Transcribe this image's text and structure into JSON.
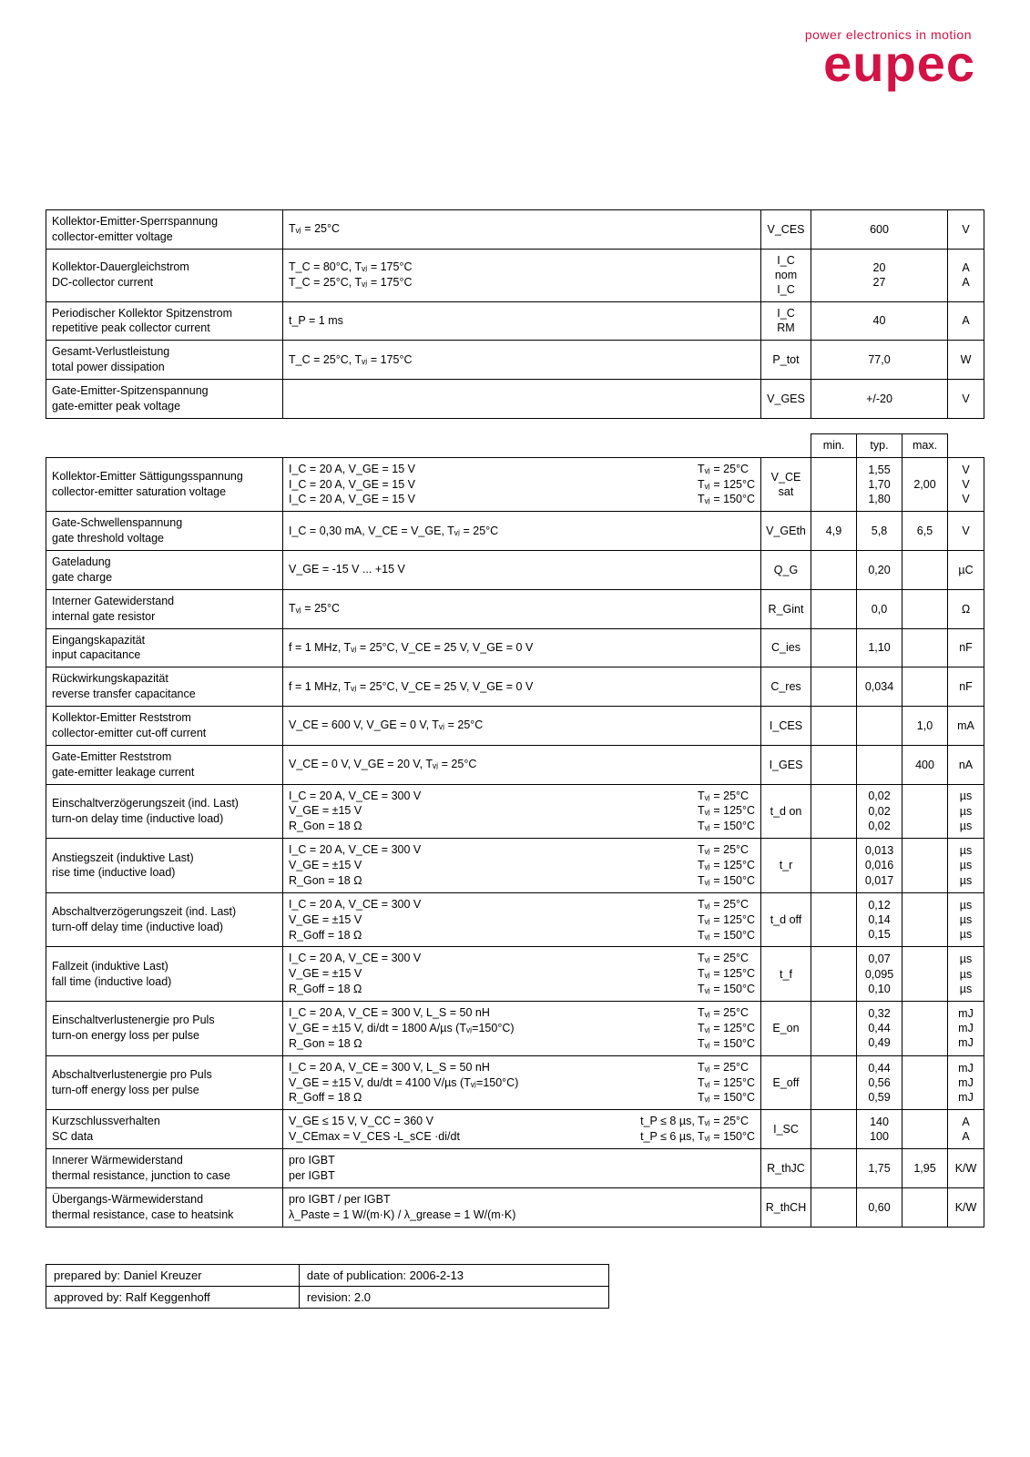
{
  "logo": {
    "tagline": "power electronics in motion",
    "brand": "eupec"
  },
  "headers": {
    "min": "min.",
    "typ": "typ.",
    "max": "max."
  },
  "table1_rows": [
    {
      "param": "Kollektor-Emitter-Sperrspannung\ncollector-emitter voltage",
      "cond_left": "Tᵥⱼ = 25°C",
      "cond_right": "",
      "sym": "V_CES",
      "val": "600",
      "unit": "V"
    },
    {
      "param": "Kollektor-Dauergleichstrom\nDC-collector current",
      "cond_left": "T_C = 80°C, Tᵥⱼ = 175°C\nT_C = 25°C, Tᵥⱼ = 175°C",
      "cond_right": "",
      "sym": "I_C nom\nI_C",
      "val": "20\n27",
      "unit": "A\nA"
    },
    {
      "param": "Periodischer Kollektor Spitzenstrom\nrepetitive peak collector current",
      "cond_left": "t_P = 1 ms",
      "cond_right": "",
      "sym": "I_C RM",
      "val": "40",
      "unit": "A"
    },
    {
      "param": "Gesamt-Verlustleistung\ntotal power dissipation",
      "cond_left": "T_C = 25°C, Tᵥⱼ = 175°C",
      "cond_right": "",
      "sym": "P_tot",
      "val": "77,0",
      "unit": "W"
    },
    {
      "param": "Gate-Emitter-Spitzenspannung\ngate-emitter peak voltage",
      "cond_left": "",
      "cond_right": "",
      "sym": "V_GES",
      "val": "+/-20",
      "unit": "V"
    }
  ],
  "table2_rows": [
    {
      "param": "Kollektor-Emitter Sättigungsspannung\ncollector-emitter saturation voltage",
      "cond_left": "I_C = 20 A, V_GE = 15 V\nI_C = 20 A, V_GE = 15 V\nI_C = 20 A, V_GE = 15 V",
      "cond_right": "Tᵥⱼ = 25°C\nTᵥⱼ = 125°C\nTᵥⱼ = 150°C",
      "sym": "V_CE sat",
      "min": "",
      "typ": "1,55\n1,70\n1,80",
      "max": "2,00",
      "unit": "V\nV\nV"
    },
    {
      "param": "Gate-Schwellenspannung\ngate threshold voltage",
      "cond_left": "I_C = 0,30 mA, V_CE = V_GE, Tᵥⱼ = 25°C",
      "cond_right": "",
      "sym": "V_GEth",
      "min": "4,9",
      "typ": "5,8",
      "max": "6,5",
      "unit": "V"
    },
    {
      "param": "Gateladung\ngate charge",
      "cond_left": "V_GE = -15 V ... +15 V",
      "cond_right": "",
      "sym": "Q_G",
      "min": "",
      "typ": "0,20",
      "max": "",
      "unit": "µC"
    },
    {
      "param": "Interner Gatewiderstand\ninternal gate resistor",
      "cond_left": "Tᵥⱼ = 25°C",
      "cond_right": "",
      "sym": "R_Gint",
      "min": "",
      "typ": "0,0",
      "max": "",
      "unit": "Ω"
    },
    {
      "param": "Eingangskapazität\ninput capacitance",
      "cond_left": "f = 1 MHz, Tᵥⱼ = 25°C, V_CE = 25 V, V_GE = 0 V",
      "cond_right": "",
      "sym": "C_ies",
      "min": "",
      "typ": "1,10",
      "max": "",
      "unit": "nF"
    },
    {
      "param": "Rückwirkungskapazität\nreverse transfer capacitance",
      "cond_left": "f = 1 MHz, Tᵥⱼ = 25°C, V_CE = 25 V, V_GE = 0 V",
      "cond_right": "",
      "sym": "C_res",
      "min": "",
      "typ": "0,034",
      "max": "",
      "unit": "nF"
    },
    {
      "param": "Kollektor-Emitter Reststrom\ncollector-emitter cut-off current",
      "cond_left": "V_CE = 600 V, V_GE = 0 V, Tᵥⱼ = 25°C",
      "cond_right": "",
      "sym": "I_CES",
      "min": "",
      "typ": "",
      "max": "1,0",
      "unit": "mA"
    },
    {
      "param": "Gate-Emitter Reststrom\ngate-emitter leakage current",
      "cond_left": "V_CE = 0 V, V_GE = 20 V, Tᵥⱼ = 25°C",
      "cond_right": "",
      "sym": "I_GES",
      "min": "",
      "typ": "",
      "max": "400",
      "unit": "nA"
    },
    {
      "param": "Einschaltverzögerungszeit (ind. Last)\nturn-on delay time (inductive load)",
      "cond_left": "I_C = 20 A, V_CE = 300 V\nV_GE = ±15 V\nR_Gon = 18 Ω",
      "cond_right": "Tᵥⱼ = 25°C\nTᵥⱼ = 125°C\nTᵥⱼ = 150°C",
      "sym": "t_d on",
      "min": "",
      "typ": "0,02\n0,02\n0,02",
      "max": "",
      "unit": "µs\nµs\nµs"
    },
    {
      "param": "Anstiegszeit (induktive Last)\nrise time (inductive load)",
      "cond_left": "I_C = 20 A, V_CE = 300 V\nV_GE = ±15 V\nR_Gon = 18 Ω",
      "cond_right": "Tᵥⱼ = 25°C\nTᵥⱼ = 125°C\nTᵥⱼ = 150°C",
      "sym": "t_r",
      "min": "",
      "typ": "0,013\n0,016\n0,017",
      "max": "",
      "unit": "µs\nµs\nµs"
    },
    {
      "param": "Abschaltverzögerungszeit (ind. Last)\nturn-off delay time (inductive load)",
      "cond_left": "I_C = 20 A, V_CE = 300 V\nV_GE = ±15 V\nR_Goff = 18 Ω",
      "cond_right": "Tᵥⱼ = 25°C\nTᵥⱼ = 125°C\nTᵥⱼ = 150°C",
      "sym": "t_d off",
      "min": "",
      "typ": "0,12\n0,14\n0,15",
      "max": "",
      "unit": "µs\nµs\nµs"
    },
    {
      "param": "Fallzeit (induktive Last)\nfall time (inductive load)",
      "cond_left": "I_C = 20 A, V_CE = 300 V\nV_GE = ±15 V\nR_Goff = 18 Ω",
      "cond_right": "Tᵥⱼ = 25°C\nTᵥⱼ = 125°C\nTᵥⱼ = 150°C",
      "sym": "t_f",
      "min": "",
      "typ": "0,07\n0,095\n0,10",
      "max": "",
      "unit": "µs\nµs\nµs"
    },
    {
      "param": "Einschaltverlustenergie pro Puls\nturn-on energy loss per pulse",
      "cond_left": "I_C = 20 A, V_CE = 300 V, L_S = 50 nH\nV_GE = ±15 V, di/dt = 1800 A/µs (Tᵥⱼ=150°C)\nR_Gon = 18 Ω",
      "cond_right": "Tᵥⱼ = 25°C\nTᵥⱼ = 125°C\nTᵥⱼ = 150°C",
      "sym": "E_on",
      "min": "",
      "typ": "0,32\n0,44\n0,49",
      "max": "",
      "unit": "mJ\nmJ\nmJ"
    },
    {
      "param": "Abschaltverlustenergie pro Puls\nturn-off energy loss per pulse",
      "cond_left": "I_C = 20 A, V_CE = 300 V, L_S = 50 nH\nV_GE = ±15 V, du/dt = 4100 V/µs (Tᵥⱼ=150°C)\nR_Goff = 18 Ω",
      "cond_right": "Tᵥⱼ = 25°C\nTᵥⱼ = 125°C\nTᵥⱼ = 150°C",
      "sym": "E_off",
      "min": "",
      "typ": "0,44\n0,56\n0,59",
      "max": "",
      "unit": "mJ\nmJ\nmJ"
    },
    {
      "param": "Kurzschlussverhalten\nSC data",
      "cond_left": "V_GE ≤ 15 V, V_CC = 360 V\nV_CEmax = V_CES -L_sCE ·di/dt",
      "cond_right": "t_P ≤ 8 µs, Tᵥⱼ = 25°C\nt_P ≤ 6 µs, Tᵥⱼ = 150°C",
      "sym": "I_SC",
      "min": "",
      "typ": "140\n100",
      "max": "",
      "unit": "A\nA"
    },
    {
      "param": "Innerer Wärmewiderstand\nthermal resistance, junction to case",
      "cond_left": "pro IGBT\nper IGBT",
      "cond_right": "",
      "sym": "R_thJC",
      "min": "",
      "typ": "1,75",
      "max": "1,95",
      "unit": "K/W"
    },
    {
      "param": "Übergangs-Wärmewiderstand\nthermal resistance, case to heatsink",
      "cond_left": "pro IGBT / per IGBT\nλ_Paste = 1 W/(m·K)   /    λ_grease = 1 W/(m·K)",
      "cond_right": "",
      "sym": "R_thCH",
      "min": "",
      "typ": "0,60",
      "max": "",
      "unit": "K/W"
    }
  ],
  "footer": {
    "r1c1": "prepared by: Daniel Kreuzer",
    "r1c2": "date of publication: 2006-2-13",
    "r2c1": "approved by: Ralf Keggenhoff",
    "r2c2": "revision: 2.0"
  }
}
